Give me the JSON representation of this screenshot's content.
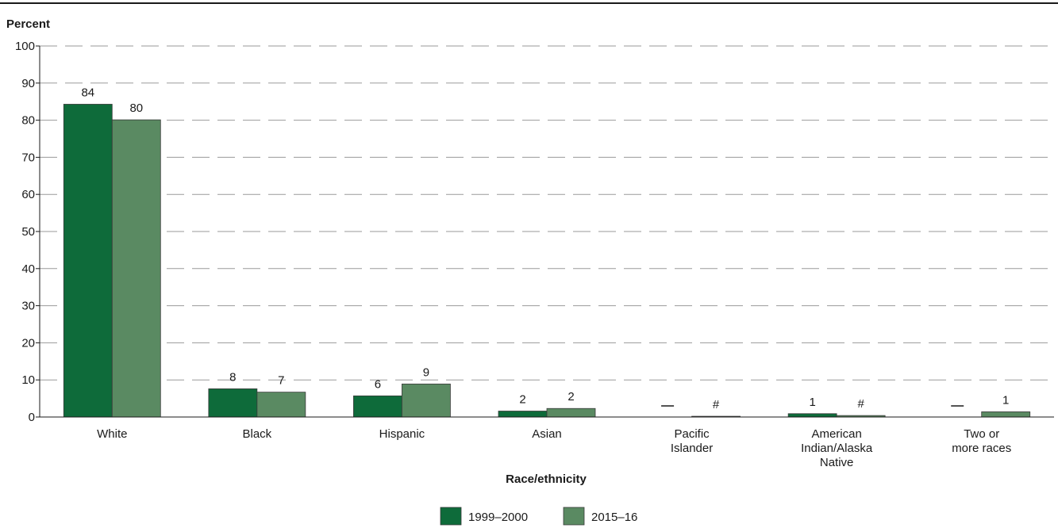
{
  "chart_data": {
    "type": "bar",
    "ylabel": "Percent",
    "xlabel": "Race/ethnicity",
    "ylim": [
      0,
      100
    ],
    "yticks": [
      0,
      10,
      20,
      30,
      40,
      50,
      60,
      70,
      80,
      90,
      100
    ],
    "grid": true,
    "legend_position": "bottom-center",
    "categories": [
      [
        "White"
      ],
      [
        "Black"
      ],
      [
        "Hispanic"
      ],
      [
        "Asian"
      ],
      [
        "Pacific",
        "Islander"
      ],
      [
        "American",
        "Indian/Alaska",
        "Native"
      ],
      [
        "Two or",
        "more races"
      ]
    ],
    "series": [
      {
        "name": "1999–2000",
        "color": "#0e6b3a",
        "values": [
          84.3,
          7.6,
          5.7,
          1.6,
          null,
          0.9,
          null
        ],
        "labels": [
          "84",
          "8",
          "6",
          "2",
          "—",
          "1",
          "—"
        ]
      },
      {
        "name": "2015–16",
        "color": "#5a8a62",
        "values": [
          80.1,
          6.7,
          8.9,
          2.3,
          0.2,
          0.4,
          1.4
        ],
        "labels": [
          "80",
          "7",
          "9",
          "2",
          "#",
          "#",
          "1"
        ]
      }
    ]
  }
}
